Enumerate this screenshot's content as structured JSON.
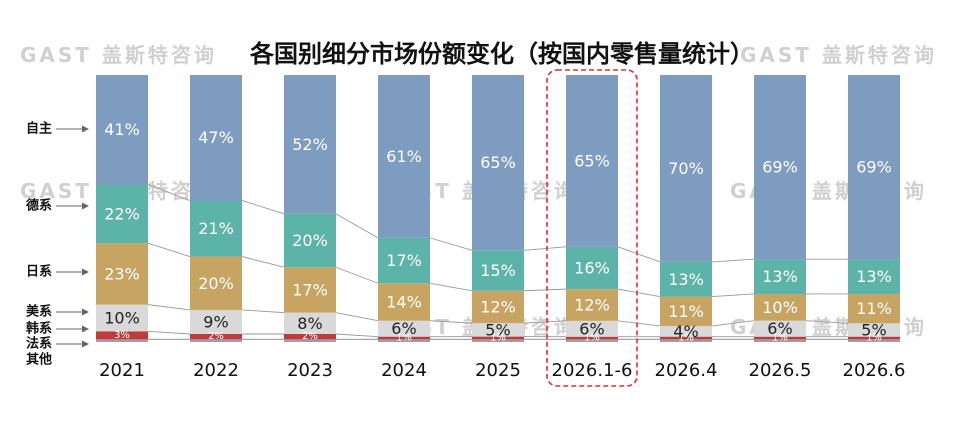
{
  "chart_data": {
    "type": "bar",
    "stacked": true,
    "title": "各国别细分市场份额变化（按国内零售量统计）",
    "categories": [
      "2021",
      "2022",
      "2023",
      "2024",
      "2025",
      "2026.1-6",
      "2026.4",
      "2026.5",
      "2026.6"
    ],
    "highlighted_category": "2026.1-6",
    "series": [
      {
        "name": "其他",
        "color": "#9aa0a6",
        "values": [
          1,
          1,
          1,
          1,
          1,
          1,
          1,
          1,
          1
        ],
        "labels": [
          "",
          "",
          "",
          "",
          "",
          "",
          "",
          "",
          ""
        ]
      },
      {
        "name": "法系",
        "color": "#7f7f7f",
        "values": [
          0,
          0,
          0,
          0,
          0,
          0,
          0,
          0,
          0
        ],
        "labels": [
          "",
          "",
          "",
          "",
          "",
          "",
          "",
          "",
          ""
        ]
      },
      {
        "name": "韩系",
        "color": "#c0393b",
        "values": [
          3,
          2,
          2,
          1,
          1,
          1,
          1,
          1,
          1
        ],
        "labels": [
          "3%",
          "2%",
          "2%",
          "1%",
          "1%",
          "1%",
          "1%",
          "1%",
          "1%"
        ]
      },
      {
        "name": "美系",
        "color": "#d9d9d9",
        "values": [
          10,
          9,
          8,
          6,
          5,
          6,
          4,
          6,
          5
        ],
        "labels": [
          "10%",
          "9%",
          "8%",
          "6%",
          "5%",
          "6%",
          "4%",
          "6%",
          "5%"
        ]
      },
      {
        "name": "日系",
        "color": "#c8a463",
        "values": [
          23,
          20,
          17,
          14,
          12,
          12,
          11,
          10,
          11
        ],
        "labels": [
          "23%",
          "20%",
          "17%",
          "14%",
          "12%",
          "12%",
          "11%",
          "10%",
          "11%"
        ]
      },
      {
        "name": "德系",
        "color": "#5cb3a7",
        "values": [
          22,
          21,
          20,
          17,
          15,
          16,
          13,
          13,
          13
        ],
        "labels": [
          "22%",
          "21%",
          "20%",
          "17%",
          "15%",
          "16%",
          "13%",
          "13%",
          "13%"
        ]
      },
      {
        "name": "自主",
        "color": "#7d9cc0",
        "values": [
          41,
          47,
          52,
          61,
          65,
          65,
          70,
          69,
          69
        ],
        "labels": [
          "41%",
          "47%",
          "52%",
          "61%",
          "65%",
          "65%",
          "70%",
          "69%",
          "69%"
        ]
      }
    ],
    "legend_labels": [
      "自主",
      "德系",
      "日系",
      "美系",
      "韩系",
      "法系",
      "其他"
    ],
    "ylim": [
      0,
      100
    ],
    "watermark": "GAST 盖斯特咨询"
  }
}
